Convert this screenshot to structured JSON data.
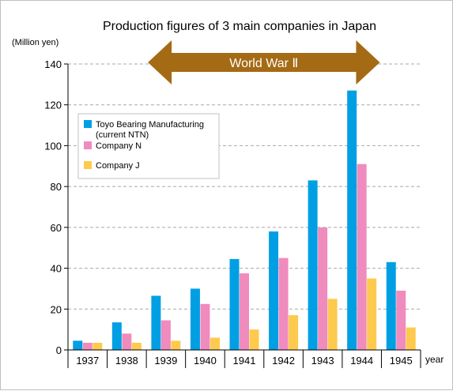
{
  "chart_data": {
    "type": "bar",
    "title": "Production figures of 3 main companies in Japan",
    "ylabel": "(Million yen)",
    "xlabel": "year",
    "ylim": [
      0,
      140
    ],
    "yticks": [
      0,
      20,
      40,
      60,
      80,
      100,
      120,
      140
    ],
    "grid": true,
    "legend_position": "top-left",
    "categories": [
      "1937",
      "1938",
      "1939",
      "1940",
      "1941",
      "1942",
      "1943",
      "1944",
      "1945"
    ],
    "series": [
      {
        "name": "Toyo Bearing Manufacturing\n(current NTN)",
        "color": "#009fe3",
        "values": [
          4.5,
          13.5,
          26.5,
          30,
          44.5,
          58,
          83,
          127,
          43
        ]
      },
      {
        "name": "Company N",
        "color": "#f08bbd",
        "values": [
          3.5,
          8,
          14.5,
          22.5,
          37.5,
          45,
          60,
          91,
          29
        ]
      },
      {
        "name": "Company J",
        "color": "#fdca4d",
        "values": [
          3.5,
          3.5,
          4.5,
          6,
          10,
          17,
          25,
          35,
          11
        ]
      }
    ],
    "annotations": [
      {
        "text": "World War Ⅱ",
        "from": "1939",
        "to": "1944",
        "color": "#a56a14"
      }
    ]
  }
}
